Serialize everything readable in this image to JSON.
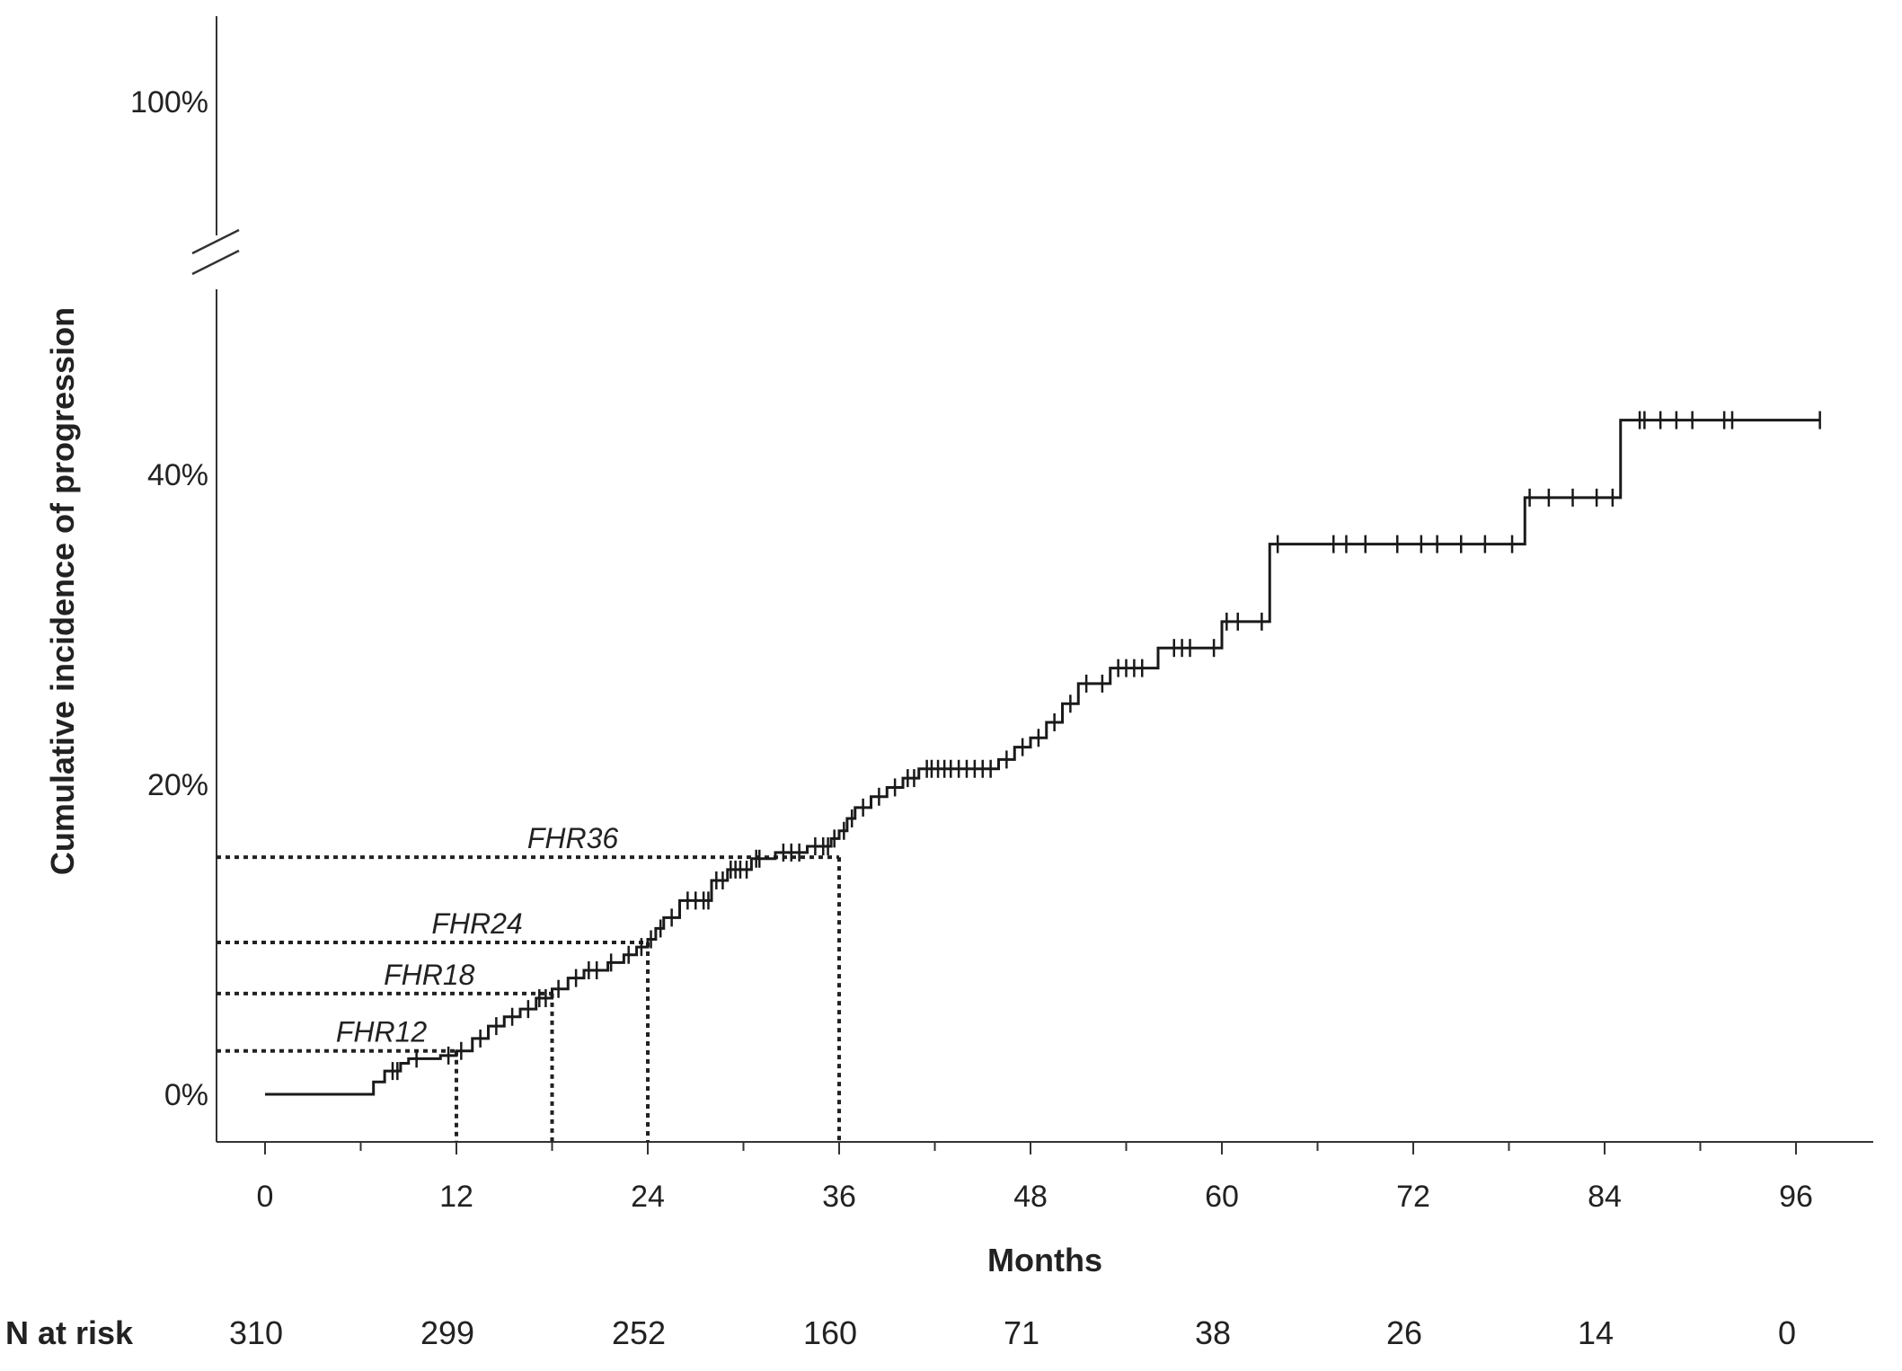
{
  "chart_data": {
    "type": "line",
    "ylabel": "Cumulative incidence of progression",
    "xlabel": "Months",
    "x_ticks": [
      0,
      12,
      24,
      36,
      48,
      60,
      72,
      84,
      96
    ],
    "x_tick_labels": [
      "0",
      "12",
      "24",
      "36",
      "48",
      "60",
      "72",
      "84",
      "96"
    ],
    "xlim": [
      -3,
      101
    ],
    "y_ticks": [
      0,
      20,
      40
    ],
    "y_tick_labels": [
      "0%",
      "20%",
      "40%"
    ],
    "y_break_label": "100%",
    "ylim": [
      -3,
      52
    ],
    "y_axis_broken": true,
    "grid": false,
    "series": [
      {
        "x": [
          0,
          6.8,
          7.5,
          8.5,
          9.0,
          11.0,
          12.0,
          13.0,
          14.0,
          15.0,
          16.0,
          17.0,
          18.0,
          19.0,
          20.0,
          21.5,
          22.5,
          23.3,
          24.0,
          24.5,
          25.0,
          26.0,
          28.0,
          29.0,
          30.5,
          32.0,
          34.0,
          35.5,
          36.0,
          36.5,
          37.0,
          38.0,
          39.0,
          40.0,
          41.0,
          46.0,
          47.0,
          48.0,
          49.0,
          50.0,
          51.0,
          53.0,
          56.0,
          60.0,
          63.0,
          79.0,
          85.0,
          97.5
        ],
        "y": [
          0,
          0.8,
          1.5,
          2.0,
          2.3,
          2.5,
          2.8,
          3.6,
          4.4,
          5.0,
          5.5,
          6.2,
          6.8,
          7.5,
          8.0,
          8.5,
          9.0,
          9.5,
          10.0,
          10.7,
          11.4,
          12.5,
          13.8,
          14.5,
          15.2,
          15.6,
          16.0,
          16.5,
          17.0,
          17.8,
          18.5,
          19.2,
          19.8,
          20.4,
          21.0,
          21.6,
          22.4,
          23.0,
          24.0,
          25.2,
          26.5,
          27.5,
          28.8,
          30.5,
          35.5,
          38.5,
          43.5,
          43.5
        ],
        "censor_x": [
          8.0,
          8.3,
          9.5,
          11.5,
          12.3,
          13.5,
          14.5,
          15.5,
          16.5,
          17.2,
          17.6,
          18.4,
          19.5,
          20.3,
          20.8,
          21.7,
          22.8,
          23.6,
          24.2,
          24.8,
          25.5,
          26.5,
          27.0,
          27.5,
          27.8,
          28.3,
          28.7,
          29.2,
          29.5,
          29.8,
          30.2,
          30.8,
          31.0,
          32.5,
          33.0,
          33.5,
          34.5,
          35.0,
          35.3,
          35.7,
          36.3,
          36.8,
          37.5,
          38.5,
          39.5,
          40.3,
          40.7,
          41.5,
          41.8,
          42.2,
          42.6,
          43.0,
          43.5,
          44.0,
          44.5,
          45.0,
          45.5,
          46.5,
          47.5,
          48.5,
          49.5,
          50.5,
          51.5,
          52.5,
          53.5,
          54.0,
          54.5,
          55.0,
          57.0,
          57.5,
          58.0,
          59.5,
          60.3,
          61.0,
          62.5,
          63.5,
          67.0,
          67.8,
          69.0,
          71.0,
          72.5,
          73.5,
          75.0,
          76.5,
          78.2,
          79.3,
          80.5,
          82.0,
          83.5,
          84.5,
          86.2,
          86.5,
          87.5,
          88.5,
          89.5,
          91.5,
          92.0,
          97.5
        ]
      }
    ],
    "reference_lines": [
      {
        "label": "FHR12",
        "x": 12,
        "y": 2.8
      },
      {
        "label": "FHR18",
        "x": 18,
        "y": 6.5
      },
      {
        "label": "FHR24",
        "x": 24,
        "y": 9.8
      },
      {
        "label": "FHR36",
        "x": 36,
        "y": 15.3
      }
    ],
    "risk_table": {
      "label": "N at risk",
      "x": [
        0,
        12,
        24,
        36,
        48,
        60,
        72,
        84,
        96
      ],
      "values": [
        "310",
        "299",
        "252",
        "160",
        "71",
        "38",
        "26",
        "14",
        "0"
      ]
    }
  }
}
